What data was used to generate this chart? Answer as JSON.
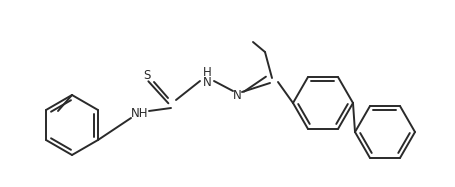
{
  "bg_color": "#ffffff",
  "line_color": "#2a2a2a",
  "line_width": 1.4,
  "font_size": 8.5,
  "figsize": [
    4.56,
    1.87
  ],
  "dpi": 100,
  "s_label": "S",
  "nh1_label": "H\nN",
  "nh2_label": "NH",
  "n_label": "N"
}
